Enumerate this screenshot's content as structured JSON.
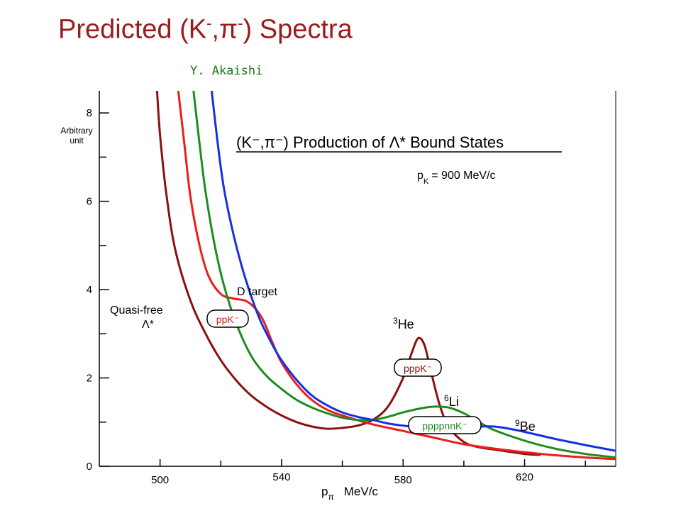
{
  "slide": {
    "title_main": "Predicted (K",
    "title_sup1": "-",
    "title_sep": ",π",
    "title_sup2": "-",
    "title_end": ") Spectra",
    "author": "Y. Akaishi"
  },
  "chart_data": {
    "type": "line",
    "title": "(K⁻,π⁻) Production of Λ* Bound States",
    "subtitle": "p_K = 900 MeV/c",
    "xlabel": "pπ  MeV/c",
    "ylabel": "Arbitrary unit",
    "xlim": [
      480,
      650
    ],
    "ylim": [
      0,
      8.5
    ],
    "x_ticks": [
      500,
      540,
      580,
      620
    ],
    "y_ticks": [
      0,
      2,
      4,
      6,
      8
    ],
    "grid": false,
    "series": [
      {
        "name": "Quasi-free Λ*",
        "color": "#8b1010",
        "x": [
          499,
          500,
          502,
          505,
          510,
          515,
          520,
          525,
          530,
          535,
          540,
          545,
          550,
          555,
          560,
          565,
          570,
          575,
          580,
          583,
          585,
          587,
          589,
          592,
          595,
          600,
          605,
          610,
          620,
          625
        ],
        "y": [
          8.5,
          7.5,
          6.2,
          4.9,
          3.75,
          3.0,
          2.4,
          1.95,
          1.6,
          1.35,
          1.15,
          1.0,
          0.9,
          0.85,
          0.87,
          0.92,
          1.05,
          1.35,
          2.0,
          2.6,
          2.9,
          2.75,
          2.2,
          1.4,
          0.9,
          0.55,
          0.43,
          0.38,
          0.28,
          0.26
        ]
      },
      {
        "name": "D target",
        "color": "#ee1c1c",
        "x": [
          506,
          508,
          510,
          513,
          516,
          520,
          524,
          528,
          531,
          534,
          537,
          540,
          545,
          550,
          555,
          560,
          570,
          580,
          590,
          600,
          610,
          620,
          630,
          640,
          650
        ],
        "y": [
          8.5,
          7.3,
          6.1,
          5.0,
          4.3,
          3.9,
          3.8,
          3.75,
          3.6,
          3.3,
          2.8,
          2.35,
          1.85,
          1.5,
          1.28,
          1.15,
          0.95,
          0.8,
          0.65,
          0.5,
          0.4,
          0.32,
          0.25,
          0.2,
          0.16
        ]
      },
      {
        "name": "6Li",
        "color": "#1e8c1e",
        "x": [
          511,
          513,
          515,
          518,
          521,
          525,
          530,
          535,
          540,
          545,
          550,
          555,
          560,
          565,
          570,
          575,
          580,
          585,
          590,
          595,
          600,
          605,
          610,
          620,
          630,
          640,
          650
        ],
        "y": [
          8.5,
          7.3,
          6.2,
          5.0,
          4.1,
          3.25,
          2.5,
          2.05,
          1.75,
          1.5,
          1.33,
          1.2,
          1.1,
          1.05,
          1.05,
          1.12,
          1.22,
          1.3,
          1.35,
          1.33,
          1.2,
          1.0,
          0.82,
          0.58,
          0.4,
          0.28,
          0.2
        ]
      },
      {
        "name": "9Be",
        "color": "#1530e0",
        "x": [
          517,
          519,
          521,
          524,
          527,
          530,
          533,
          537,
          540,
          545,
          550,
          555,
          560,
          565,
          570,
          575,
          580,
          585,
          590,
          595,
          600,
          605,
          610,
          615,
          620,
          630,
          640,
          650
        ],
        "y": [
          8.5,
          7.3,
          6.3,
          5.3,
          4.5,
          3.85,
          3.3,
          2.75,
          2.4,
          1.95,
          1.6,
          1.38,
          1.22,
          1.12,
          1.05,
          0.97,
          0.92,
          0.88,
          0.87,
          0.87,
          0.88,
          0.9,
          0.9,
          0.85,
          0.78,
          0.62,
          0.48,
          0.35
        ]
      }
    ],
    "annotations": {
      "d_target": "D target",
      "quasi_free_1": "Quasi-free",
      "quasi_free_2": "Λ*",
      "he3_sup": "3",
      "he3": "He",
      "li6_sup": "6",
      "li6": "Li",
      "be9_sup": "9",
      "be9": "Be",
      "box_ppk": "ppK⁻",
      "box_pppk": "pppK⁻",
      "box_ppppnnk": "ppppnnK⁻"
    }
  }
}
